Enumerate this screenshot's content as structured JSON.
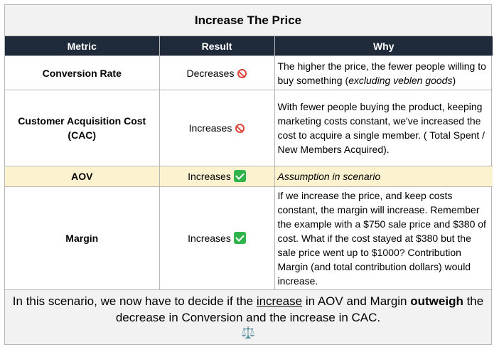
{
  "title": "Increase The Price",
  "headers": [
    "Metric",
    "Result",
    "Why"
  ],
  "rows": [
    {
      "metric": "Conversion Rate",
      "result": "Decreases",
      "result_icon": "no-entry-icon",
      "why_main": "The higher the price, the fewer people willing to buy something (",
      "why_italic": "excluding veblen goods",
      "why_tail": ")"
    },
    {
      "metric": "Customer Acquisition Cost (CAC)",
      "result": "Increases",
      "result_icon": "no-entry-icon",
      "why_main": "With fewer people buying the product, keeping marketing costs constant, we've increased the cost to acquire a single member. ( Total Spent / New Members Acquired).",
      "why_italic": "",
      "why_tail": ""
    },
    {
      "metric": "AOV",
      "result": "Increases",
      "result_icon": "check-mark-icon",
      "why_main": "",
      "why_italic": "Assumption in scenario",
      "why_tail": ""
    },
    {
      "metric": "Margin",
      "result": "Increases",
      "result_icon": "check-mark-icon",
      "why_main": "If we increase the price, and keep costs constant, the margin will increase. Remember the example with a $750 sale price and $380 of cost. What if the cost stayed at $380 but the sale price went up to $1000? Contribution Margin (and total contribution dollars) would increase.",
      "why_italic": "",
      "why_tail": ""
    }
  ],
  "footer": {
    "part1": "In this scenario, we now have to decide if the ",
    "underlined": "increase",
    "part2": " in AOV and Margin ",
    "bold": "outweigh",
    "part3": " the decrease in Conversion and the increase in CAC.",
    "icon": "balance-scale-icon",
    "icon_glyph": "⚖️"
  },
  "colors": {
    "header_bg": "#1f2b3b",
    "highlight_row": "#fdf2d0",
    "title_bg": "#f2f2f2",
    "negative": "#e0443a",
    "positive": "#2fb34a"
  }
}
